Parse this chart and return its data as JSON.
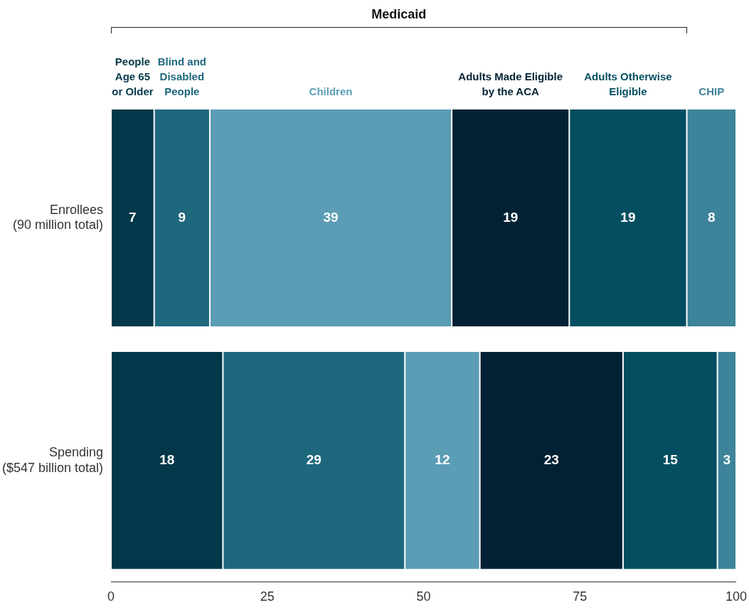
{
  "chart_data": {
    "type": "bar",
    "orientation": "horizontal",
    "stacked": true,
    "legend": false,
    "grid": false,
    "categories": [
      "Enrollees (90 million total)",
      "Spending ($547 billion total)"
    ],
    "series": [
      {
        "name": "People Age 65 or Older",
        "color": "#023849",
        "values": [
          6.9,
          17.9
        ],
        "value_labels": [
          "7",
          "18"
        ]
      },
      {
        "name": "Blind and Disabled People",
        "color": "#1e687e",
        "values": [
          8.9,
          29.1
        ],
        "value_labels": [
          "9",
          "29"
        ]
      },
      {
        "name": "Children",
        "color": "#5b9db5",
        "values": [
          38.7,
          12.0
        ],
        "value_labels": [
          "39",
          "12"
        ]
      },
      {
        "name": "Adults Made Eligible by the ACA",
        "color": "#022134",
        "values": [
          18.8,
          22.9
        ],
        "value_labels": [
          "19",
          "23"
        ]
      },
      {
        "name": "Adults Otherwise Eligible",
        "color": "#034f61",
        "values": [
          18.8,
          15.1
        ],
        "value_labels": [
          "19",
          "15"
        ]
      },
      {
        "name": "CHIP",
        "color": "#3d8399",
        "values": [
          7.9,
          3.0
        ],
        "value_labels": [
          "8",
          "3"
        ]
      }
    ],
    "xlim": [
      0,
      100
    ],
    "xticks": [
      0,
      25,
      50,
      75,
      100
    ],
    "annotations": [
      "Medicaid"
    ]
  }
}
